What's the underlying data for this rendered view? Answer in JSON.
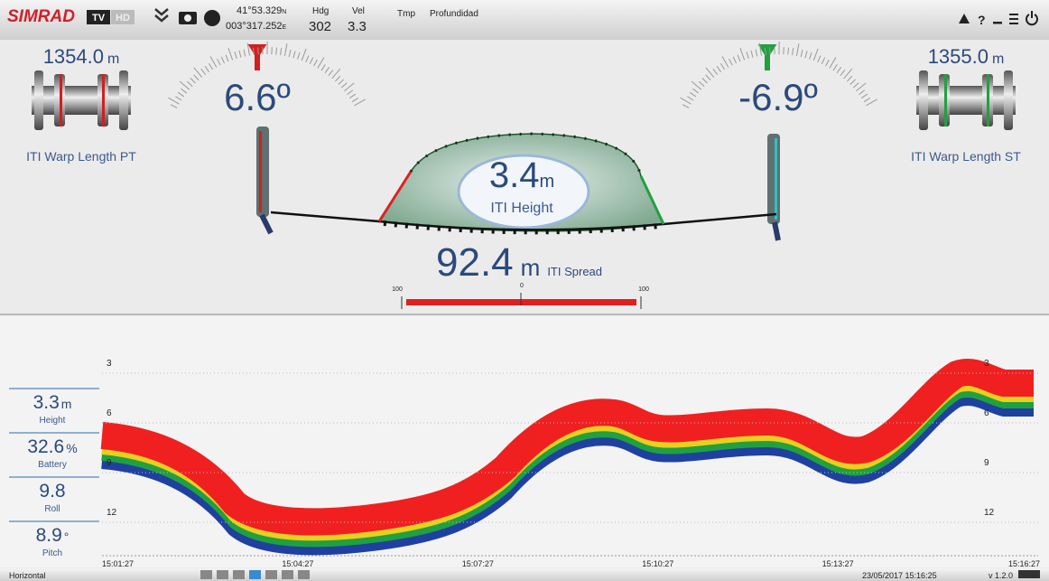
{
  "top_bar": {
    "brand": "SIMRAD",
    "badges": [
      "TV",
      "HD"
    ],
    "latitude": "41°53.329",
    "lat_hemisphere": "N",
    "longitude": "003°317.252",
    "lon_hemisphere": "E",
    "heading_label": "Hdg",
    "heading_value": "302",
    "speed_label": "Vel",
    "speed_value": "3.3",
    "temperature_label": "Tmp",
    "depth_label": "Profundidad"
  },
  "winches": [
    {
      "length": "1354.0",
      "unit": "m",
      "label": "ITI Warp Length PT",
      "angle": "6.6º"
    },
    {
      "length": "1355.0",
      "unit": "m",
      "label": "ITI Warp Length ST",
      "angle": "-6.9º"
    }
  ],
  "net": {
    "height_value": "3.4",
    "height_unit": "m",
    "height_label": "ITI Height",
    "spread_value": "92.4",
    "spread_unit": "m",
    "spread_label": "ITI Spread",
    "scale_labels": [
      "100",
      "0",
      "100"
    ]
  },
  "sensors": [
    {
      "value": "3.3",
      "unit": "m",
      "label": "Height"
    },
    {
      "value": "32.6",
      "unit": "%",
      "label": "Battery"
    },
    {
      "value": "9.8",
      "label": "Roll"
    },
    {
      "value": "8.9",
      "unit": "°",
      "label": "Pitch"
    }
  ],
  "echogram": {
    "depth_labels": [
      "3",
      "6",
      "9",
      "12"
    ],
    "time_labels": [
      "15:01:27",
      "15:04:27",
      "15:07:27",
      "15:10:27",
      "15:13:27",
      "15:16:27"
    ]
  },
  "status_bar": {
    "mode": "Horizontal",
    "datetime": "23/05/2017 15:16:25",
    "version": "v 1.2.0"
  }
}
